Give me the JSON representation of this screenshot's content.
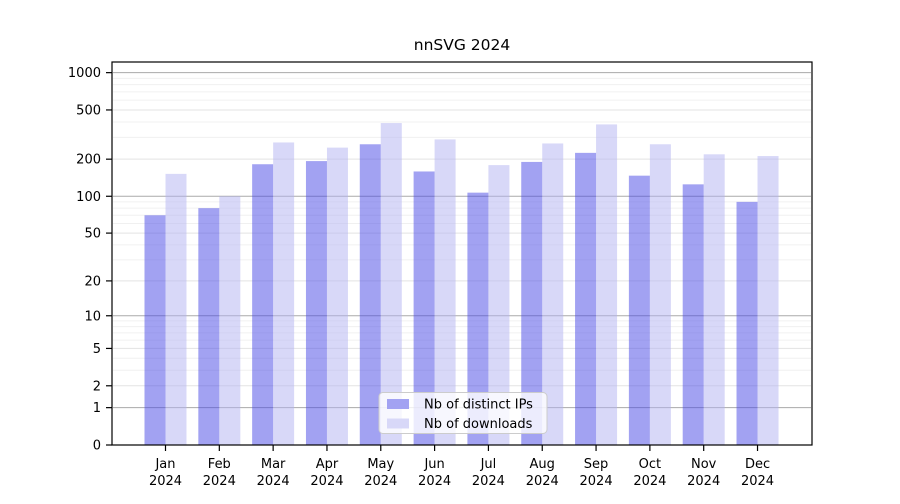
{
  "title": "nnSVG 2024",
  "colors": {
    "ips_bar_base": "#4545e5",
    "downloads_bar_base": "#b1b1f1",
    "ips_swatch": "#a2a2f2",
    "downloads_swatch": "#d8d8f8",
    "bar_opacity": 0.5,
    "grid_decade": "#aaaaaa",
    "grid_major": "#e3e3e3",
    "grid_minor": "#f0f0f0",
    "axis": "#000000",
    "legend_border": "#cccccc",
    "legend_bg": "rgba(255,255,255,0.8)"
  },
  "axes": {
    "y_ticks": [
      0,
      1,
      2,
      5,
      10,
      20,
      50,
      100,
      200,
      500,
      1000
    ],
    "y_decade_lines": [
      1,
      10,
      100,
      1000
    ],
    "y_minor_multiples": [
      3,
      4,
      6,
      7,
      8,
      9
    ],
    "x_year_label": "2024"
  },
  "legend": {
    "items": [
      {
        "label": "Nb of distinct IPs",
        "swatch": "#a2a2f2"
      },
      {
        "label": "Nb of downloads",
        "swatch": "#d8d8f8"
      }
    ]
  },
  "chart_data": {
    "type": "bar",
    "title": "nnSVG 2024",
    "scale": "log1p",
    "grid": true,
    "legend_position": "lower center",
    "categories": [
      "Jan 2024",
      "Feb 2024",
      "Mar 2024",
      "Apr 2024",
      "May 2024",
      "Jun 2024",
      "Jul 2024",
      "Aug 2024",
      "Sep 2024",
      "Oct 2024",
      "Nov 2024",
      "Dec 2024"
    ],
    "series": [
      {
        "name": "Nb of distinct IPs",
        "values": [
          70,
          80,
          182,
          193,
          264,
          159,
          107,
          190,
          225,
          147,
          125,
          90
        ]
      },
      {
        "name": "Nb of downloads",
        "values": [
          152,
          100,
          273,
          248,
          392,
          289,
          179,
          268,
          382,
          264,
          219,
          212
        ]
      }
    ],
    "yticks": [
      0,
      1,
      2,
      5,
      10,
      20,
      50,
      100,
      200,
      500,
      1000
    ],
    "ylim": [
      0,
      1220
    ],
    "xlabel": "",
    "ylabel": ""
  }
}
